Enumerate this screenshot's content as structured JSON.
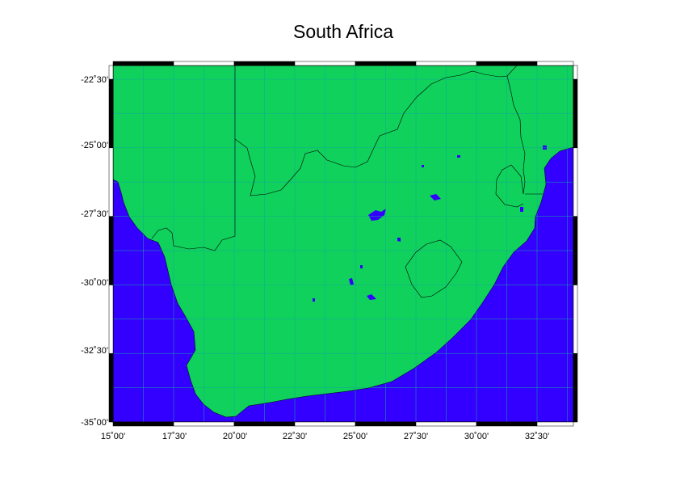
{
  "title": "South Africa",
  "colors": {
    "land": "#0fd15c",
    "water": "#3300ff",
    "border": "#000000",
    "grid": "#14a89a"
  },
  "x_axis_labels": [
    "15˚00'",
    "17˚30'",
    "20˚00'",
    "22˚30'",
    "25˚00'",
    "27˚30'",
    "30˚00'",
    "32˚30'"
  ],
  "y_axis_labels": [
    "-22˚30'",
    "-25˚00'",
    "-27˚30'",
    "-30˚00'",
    "-32˚30'",
    "-35˚00'"
  ],
  "longitude_range": [
    "15˚00'",
    "34˚00'"
  ],
  "latitude_range": [
    "-35˚00'",
    "-22˚00'"
  ]
}
